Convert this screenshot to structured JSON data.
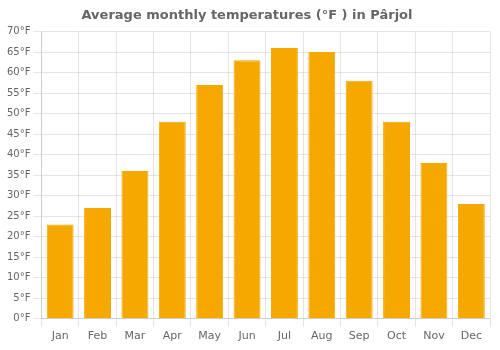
{
  "chart_data": {
    "type": "bar",
    "title": "Average monthly temperatures (°F ) in Pârjol",
    "categories": [
      "Jan",
      "Feb",
      "Mar",
      "Apr",
      "May",
      "Jun",
      "Jul",
      "Aug",
      "Sep",
      "Oct",
      "Nov",
      "Dec"
    ],
    "values": [
      23,
      27,
      36,
      48,
      57,
      63,
      66,
      65,
      58,
      48,
      38,
      28
    ],
    "color": "#F5A800",
    "ylim": [
      0,
      70
    ],
    "yticks": [
      {
        "value": 0,
        "label": "0°F"
      },
      {
        "value": 5,
        "label": "5°F"
      },
      {
        "value": 10,
        "label": "10°F"
      },
      {
        "value": 15,
        "label": "15°F"
      },
      {
        "value": 20,
        "label": "20°F"
      },
      {
        "value": 25,
        "label": "25°F"
      },
      {
        "value": 30,
        "label": "30°F"
      },
      {
        "value": 35,
        "label": "35°F"
      },
      {
        "value": 40,
        "label": "40°F"
      },
      {
        "value": 45,
        "label": "45°F"
      },
      {
        "value": 50,
        "label": "50°F"
      },
      {
        "value": 55,
        "label": "55°F"
      },
      {
        "value": 60,
        "label": "60°F"
      },
      {
        "value": 65,
        "label": "65°F"
      },
      {
        "value": 70,
        "label": "70°F"
      }
    ],
    "grid": true
  }
}
